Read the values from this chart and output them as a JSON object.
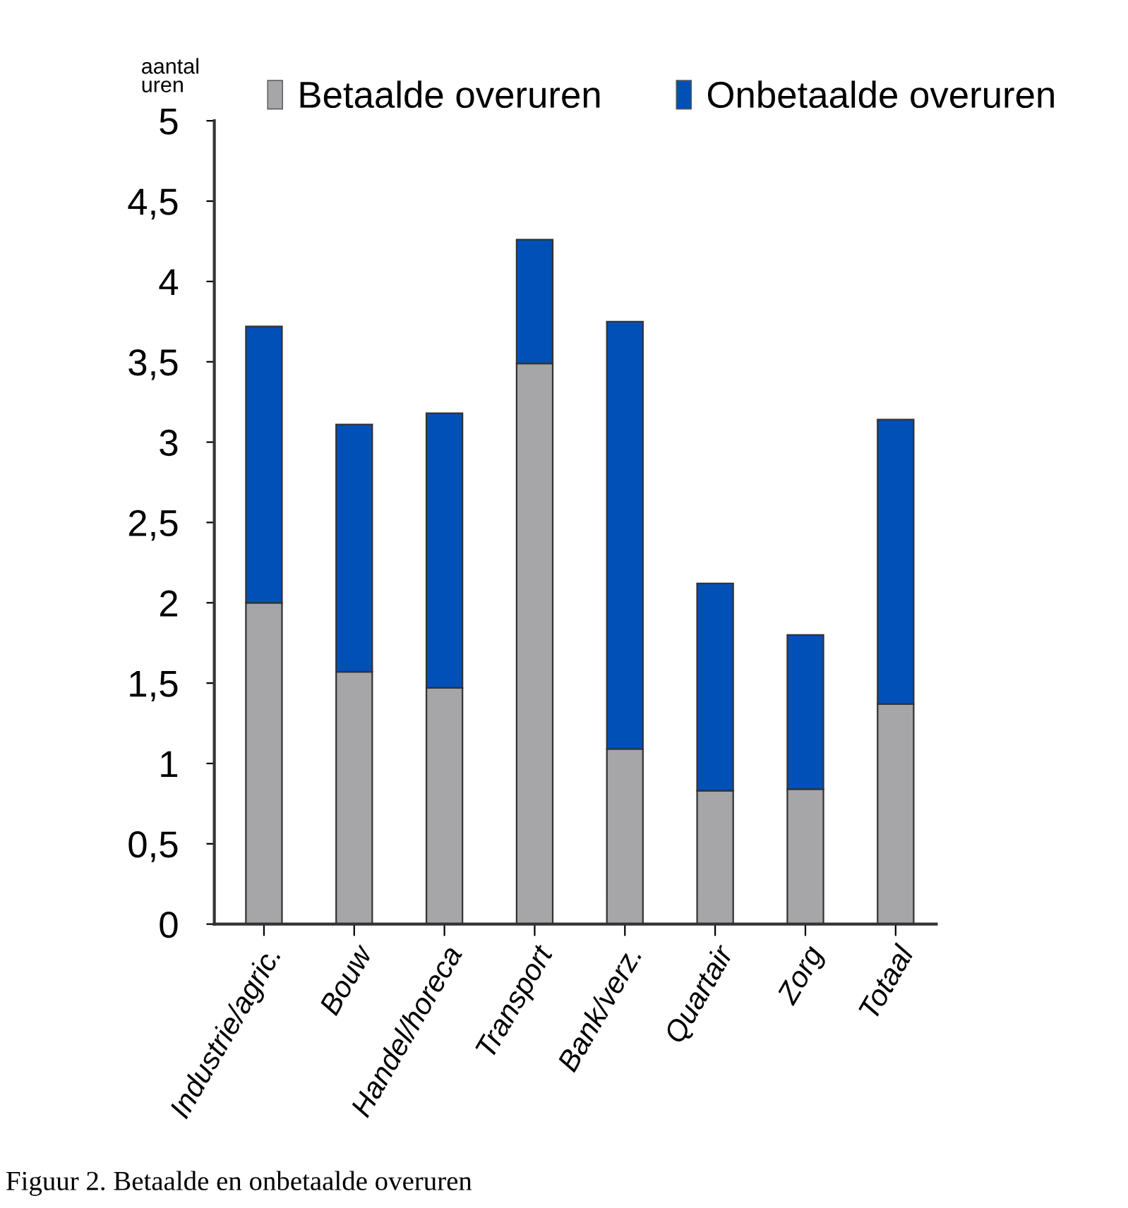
{
  "chart_data": {
    "type": "bar",
    "stacked": true,
    "ylabel": "aantal\nuren",
    "categories": [
      "Industrie/agric.",
      "Bouw",
      "Handel/horeca",
      "Transport",
      "Bank/verz.",
      "Quartair",
      "Zorg",
      "Totaal"
    ],
    "series": [
      {
        "name": "Betaalde overuren",
        "color": "#a6a6a8",
        "values": [
          2.0,
          1.57,
          1.47,
          3.49,
          1.09,
          0.83,
          0.84,
          1.37
        ]
      },
      {
        "name": "Onbetaalde overuren",
        "color": "#0050b8",
        "values": [
          1.72,
          1.54,
          1.71,
          0.77,
          2.66,
          1.29,
          0.96,
          1.77
        ]
      }
    ],
    "ylim": [
      0,
      5
    ],
    "yticks": [
      0,
      {
        "value": 0.5,
        "label": "0,5"
      },
      1,
      {
        "value": 1.5,
        "label": "1,5"
      },
      2,
      {
        "value": 2.5,
        "label": "2,5"
      },
      3,
      {
        "value": 3.5,
        "label": "3,5"
      },
      4,
      {
        "value": 4.5,
        "label": "4,5"
      },
      5
    ],
    "grid": false,
    "legend": "top",
    "annotations": [
      "Figuur 2. Betaalde en onbetaalde overuren"
    ]
  }
}
